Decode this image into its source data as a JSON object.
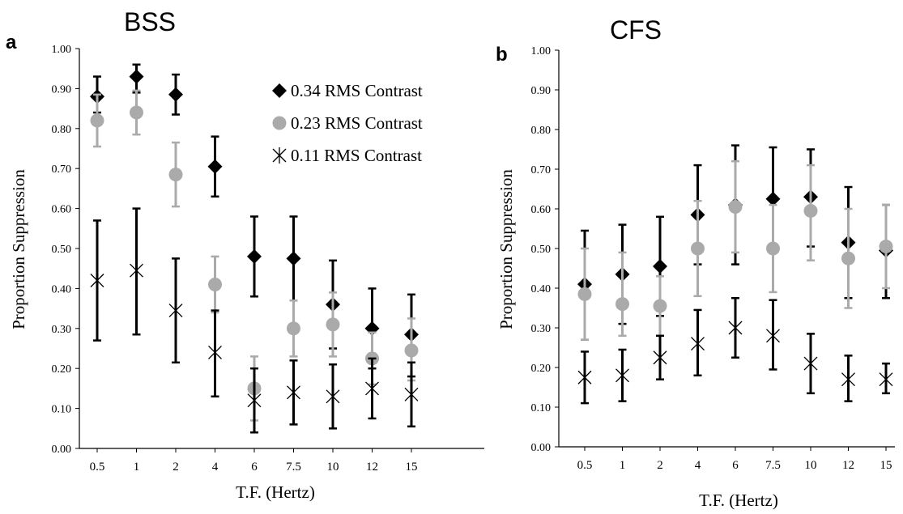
{
  "chart_data": [
    {
      "type": "scatter",
      "panel_letter": "a",
      "title": "BSS",
      "xlabel": "T.F. (Hertz)",
      "ylabel": "Proportion Suppression",
      "categories": [
        "0.5",
        "1",
        "2",
        "4",
        "6",
        "7.5",
        "10",
        "12",
        "15"
      ],
      "ylim": [
        0,
        1
      ],
      "yticks": [
        "0.00",
        "0.10",
        "0.20",
        "0.30",
        "0.40",
        "0.50",
        "0.60",
        "0.70",
        "0.80",
        "0.90",
        "1.00"
      ],
      "grid": false,
      "legend": {
        "placement": "top-right",
        "entries": [
          "0.34 RMS Contrast",
          "0.23 RMS Contrast",
          "0.11 RMS Contrast"
        ]
      },
      "series": [
        {
          "name": "0.34 RMS Contrast",
          "marker": "diamond",
          "color": "#000000",
          "values": [
            0.88,
            0.93,
            0.885,
            0.705,
            0.48,
            0.475,
            0.36,
            0.3,
            0.285
          ],
          "err_low": [
            0.84,
            0.89,
            0.835,
            0.63,
            0.38,
            0.37,
            0.25,
            0.2,
            0.18
          ],
          "err_high": [
            0.93,
            0.96,
            0.935,
            0.78,
            0.58,
            0.58,
            0.47,
            0.4,
            0.385
          ]
        },
        {
          "name": "0.23 RMS Contrast",
          "marker": "circle",
          "color": "#aaaaaa",
          "values": [
            0.82,
            0.84,
            0.685,
            0.41,
            0.15,
            0.3,
            0.31,
            0.225,
            0.245
          ],
          "err_low": [
            0.755,
            0.785,
            0.605,
            0.34,
            0.07,
            0.23,
            0.23,
            0.16,
            0.17
          ],
          "err_high": [
            0.885,
            0.895,
            0.765,
            0.48,
            0.23,
            0.37,
            0.39,
            0.29,
            0.325
          ]
        },
        {
          "name": "0.11 RMS Contrast",
          "marker": "star",
          "color": "#000000",
          "values": [
            0.42,
            0.445,
            0.345,
            0.24,
            0.12,
            0.14,
            0.13,
            0.15,
            0.135
          ],
          "err_low": [
            0.27,
            0.285,
            0.215,
            0.13,
            0.04,
            0.06,
            0.05,
            0.075,
            0.055
          ],
          "err_high": [
            0.57,
            0.6,
            0.475,
            0.345,
            0.2,
            0.22,
            0.21,
            0.225,
            0.215
          ]
        }
      ]
    },
    {
      "type": "scatter",
      "panel_letter": "b",
      "title": "CFS",
      "xlabel": "T.F. (Hertz)",
      "ylabel": "Proportion Suppression",
      "categories": [
        "0.5",
        "1",
        "2",
        "4",
        "6",
        "7.5",
        "10",
        "12",
        "15"
      ],
      "ylim": [
        0,
        1
      ],
      "yticks": [
        "0.00",
        "0.10",
        "0.20",
        "0.30",
        "0.40",
        "0.50",
        "0.60",
        "0.70",
        "0.80",
        "0.90",
        "1.00"
      ],
      "grid": false,
      "series": [
        {
          "name": "0.34 RMS Contrast",
          "marker": "diamond",
          "color": "#000000",
          "values": [
            0.41,
            0.435,
            0.455,
            0.585,
            0.61,
            0.625,
            0.63,
            0.515,
            0.495
          ],
          "err_low": [
            0.27,
            0.31,
            0.33,
            0.46,
            0.46,
            0.49,
            0.505,
            0.375,
            0.375
          ],
          "err_high": [
            0.545,
            0.56,
            0.58,
            0.71,
            0.76,
            0.755,
            0.75,
            0.655,
            0.61
          ]
        },
        {
          "name": "0.23 RMS Contrast",
          "marker": "circle",
          "color": "#aaaaaa",
          "values": [
            0.385,
            0.36,
            0.355,
            0.5,
            0.605,
            0.5,
            0.595,
            0.475,
            0.505
          ],
          "err_low": [
            0.27,
            0.28,
            0.28,
            0.38,
            0.49,
            0.39,
            0.47,
            0.35,
            0.4
          ],
          "err_high": [
            0.5,
            0.49,
            0.43,
            0.62,
            0.72,
            0.61,
            0.71,
            0.6,
            0.61
          ]
        },
        {
          "name": "0.11 RMS Contrast",
          "marker": "star",
          "color": "#000000",
          "values": [
            0.175,
            0.18,
            0.225,
            0.26,
            0.3,
            0.28,
            0.21,
            0.17,
            0.17
          ],
          "err_low": [
            0.11,
            0.115,
            0.17,
            0.18,
            0.225,
            0.195,
            0.135,
            0.115,
            0.135
          ],
          "err_high": [
            0.24,
            0.245,
            0.28,
            0.345,
            0.375,
            0.37,
            0.285,
            0.23,
            0.21
          ]
        }
      ]
    }
  ]
}
